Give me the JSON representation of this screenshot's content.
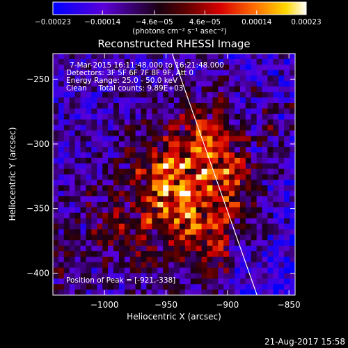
{
  "chart_data": {
    "type": "heatmap",
    "title": "Reconstructed RHESSI Image",
    "xlabel": "Heliocentric X (arcsec)",
    "ylabel": "Heliocentric Y (arcsec)",
    "xlim": [
      -1042,
      -845
    ],
    "ylim": [
      -417,
      -230
    ],
    "x_ticks": [
      -1000,
      -950,
      -900,
      -850
    ],
    "x_tick_labels": [
      "−1000",
      "−950",
      "−900",
      "−850"
    ],
    "y_ticks": [
      -250,
      -300,
      -350,
      -400
    ],
    "y_tick_labels": [
      "−250",
      "−300",
      "−350",
      "−400"
    ],
    "colorbar": {
      "range": [
        -0.00023,
        0.00023
      ],
      "ticks": [
        -0.00023,
        -0.00014,
        -4.6e-05,
        4.6e-05,
        0.00014,
        0.00023
      ],
      "tick_labels": [
        "−0.00023",
        "−0.00014",
        "−4.6e−05",
        "4.6e−05",
        "0.00014",
        "0.00023"
      ],
      "units": "(photons cm⁻² s⁻¹ asec⁻²)",
      "colormap": [
        "#0000ff",
        "#6a00c8",
        "#1a0000",
        "#cc0000",
        "#ff6600",
        "#ffd400",
        "#ffffff"
      ]
    },
    "annotations": [
      "7-Mar-2015 16:11:48.000 to 16:21:48.000",
      "Detectors: 3F 5F 6F 7F 8F 9F, Att 0",
      "Energy Range: 25.0 - 50.0 keV",
      "Clean     Total counts: 9.89E+03"
    ],
    "peak_label": "Position of Peak = [-921,-338]",
    "peak": [
      -921,
      -338
    ],
    "limb_line": [
      [
        -945,
        -230
      ],
      [
        -876,
        -417
      ]
    ],
    "grid": false
  },
  "footer_timestamp": "21-Aug-2017 15:58"
}
